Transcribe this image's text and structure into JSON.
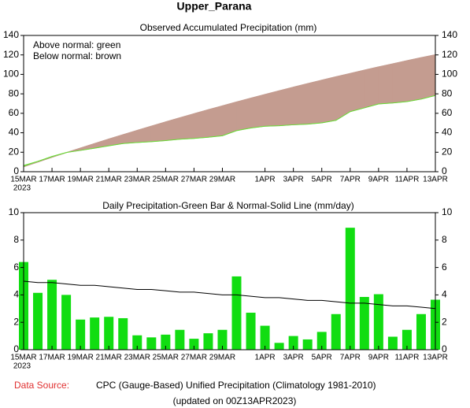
{
  "title": "Upper_Parana",
  "chart_data": [
    {
      "type": "area",
      "title": "Observed Accumulated Precipitation (mm)",
      "annotations": [
        "Above normal: green",
        "Below normal: brown"
      ],
      "categories": [
        "15MAR",
        null,
        "17MAR",
        null,
        "19MAR",
        null,
        "21MAR",
        null,
        "23MAR",
        null,
        "25MAR",
        null,
        "27MAR",
        null,
        "29MAR",
        null,
        null,
        "1APR",
        null,
        "3APR",
        null,
        "5APR",
        null,
        "7APR",
        null,
        "9APR",
        null,
        "11APR",
        null,
        "13APR"
      ],
      "year": "2023",
      "observed": [
        6.4,
        10.6,
        15.7,
        19.7,
        21.9,
        24.2,
        26.6,
        28.9,
        30.0,
        30.9,
        32.0,
        33.4,
        34.2,
        35.4,
        36.9,
        42.2,
        44.9,
        46.7,
        47.2,
        48.2,
        48.9,
        50.2,
        52.8,
        61.7,
        65.6,
        69.6,
        70.6,
        72.0,
        74.6,
        78.3
      ],
      "normal": [
        5.0,
        9.9,
        14.8,
        19.6,
        24.3,
        29.0,
        33.6,
        38.1,
        42.5,
        46.9,
        51.2,
        55.4,
        59.6,
        63.7,
        67.7,
        71.7,
        75.6,
        79.4,
        83.2,
        86.9,
        90.5,
        94.1,
        97.6,
        101.0,
        104.4,
        107.7,
        110.9,
        114.1,
        117.2,
        120.2
      ],
      "above_color": "#66dd33",
      "below_color": "#c49c90",
      "ylim": [
        0,
        140
      ],
      "yticks": [
        0,
        20,
        40,
        60,
        80,
        100,
        120,
        140
      ]
    },
    {
      "type": "bar",
      "title": "Daily Precipitation-Green Bar & Normal-Solid Line (mm/day)",
      "categories": [
        "15MAR",
        null,
        "17MAR",
        null,
        "19MAR",
        null,
        "21MAR",
        null,
        "23MAR",
        null,
        "25MAR",
        null,
        "27MAR",
        null,
        "29MAR",
        null,
        null,
        "1APR",
        null,
        "3APR",
        null,
        "5APR",
        null,
        "7APR",
        null,
        "9APR",
        null,
        "11APR",
        null,
        "13APR"
      ],
      "year": "2023",
      "values": [
        6.4,
        4.15,
        5.1,
        4.0,
        2.2,
        2.35,
        2.4,
        2.3,
        1.05,
        0.9,
        1.1,
        1.45,
        0.8,
        1.2,
        1.45,
        5.35,
        2.7,
        1.75,
        0.5,
        1.0,
        0.75,
        1.3,
        2.6,
        8.9,
        3.85,
        4.05,
        0.95,
        1.45,
        2.6,
        3.65
      ],
      "color": "#11dd11",
      "normal": [
        5.0,
        4.9,
        4.9,
        4.8,
        4.7,
        4.7,
        4.6,
        4.5,
        4.4,
        4.4,
        4.3,
        4.2,
        4.2,
        4.1,
        4.0,
        4.0,
        3.9,
        3.8,
        3.8,
        3.7,
        3.6,
        3.6,
        3.5,
        3.4,
        3.4,
        3.3,
        3.2,
        3.2,
        3.1,
        3.0
      ],
      "normal_color": "#000000",
      "ylim": [
        0,
        10
      ],
      "yticks": [
        0,
        2,
        4,
        6,
        8,
        10
      ]
    }
  ],
  "footer": {
    "source_label": "Data Source:",
    "source": "CPC (Gauge-Based) Unified Precipitation (Climatology 1981-2010)",
    "updated": "(updated on 00Z13APR2023)"
  }
}
